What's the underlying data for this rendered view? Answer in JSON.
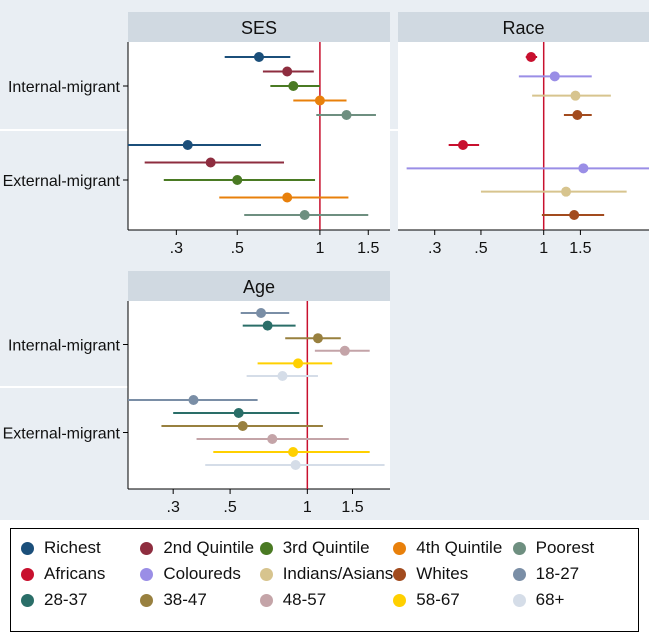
{
  "panel_rows": [
    "Internal-migrant",
    "External-migrant"
  ],
  "chart_data": [
    {
      "type": "coefficient-plot",
      "title": "SES",
      "scale": "log",
      "xticks": [
        0.3,
        0.5,
        1,
        1.5
      ],
      "xtick_labels": [
        ".3",
        ".5",
        "1",
        "1.5"
      ],
      "xlim": [
        0.2,
        1.8
      ],
      "reference_line": 1,
      "rows": [
        "Internal-migrant",
        "External-migrant"
      ],
      "series": [
        {
          "name": "Richest",
          "color": "#1b4f7a",
          "points": [
            {
              "row": "Internal-migrant",
              "est": 0.6,
              "lo": 0.45,
              "hi": 0.78
            },
            {
              "row": "External-migrant",
              "est": 0.33,
              "lo": 0.2,
              "hi": 0.61
            }
          ]
        },
        {
          "name": "2nd Quintile",
          "color": "#8e2d3f",
          "points": [
            {
              "row": "Internal-migrant",
              "est": 0.76,
              "lo": 0.62,
              "hi": 0.95
            },
            {
              "row": "External-migrant",
              "est": 0.4,
              "lo": 0.23,
              "hi": 0.74
            }
          ]
        },
        {
          "name": "3rd Quintile",
          "color": "#4a7a23",
          "points": [
            {
              "row": "Internal-migrant",
              "est": 0.8,
              "lo": 0.66,
              "hi": 1.0
            },
            {
              "row": "External-migrant",
              "est": 0.5,
              "lo": 0.27,
              "hi": 0.96
            }
          ]
        },
        {
          "name": "4th Quintile",
          "color": "#e8800b",
          "points": [
            {
              "row": "Internal-migrant",
              "est": 1.0,
              "lo": 0.8,
              "hi": 1.25
            },
            {
              "row": "External-migrant",
              "est": 0.76,
              "lo": 0.43,
              "hi": 1.27
            }
          ]
        },
        {
          "name": "Poorest",
          "color": "#6e8f80",
          "points": [
            {
              "row": "Internal-migrant",
              "est": 1.25,
              "lo": 0.97,
              "hi": 1.6
            },
            {
              "row": "External-migrant",
              "est": 0.88,
              "lo": 0.53,
              "hi": 1.5
            }
          ]
        }
      ]
    },
    {
      "type": "coefficient-plot",
      "title": "Race",
      "scale": "log",
      "xticks": [
        0.3,
        0.5,
        1,
        1.5
      ],
      "xtick_labels": [
        ".3",
        ".5",
        "1",
        "1.5"
      ],
      "xlim": [
        0.2,
        3.2
      ],
      "reference_line": 1,
      "rows": [
        "Internal-migrant",
        "External-migrant"
      ],
      "series": [
        {
          "name": "Africans",
          "color": "#c8102e",
          "points": [
            {
              "row": "Internal-migrant",
              "est": 0.87,
              "lo": 0.82,
              "hi": 0.93
            },
            {
              "row": "External-migrant",
              "est": 0.41,
              "lo": 0.35,
              "hi": 0.49
            }
          ]
        },
        {
          "name": "Coloureds",
          "color": "#9a8ee6",
          "points": [
            {
              "row": "Internal-migrant",
              "est": 1.13,
              "lo": 0.76,
              "hi": 1.7
            },
            {
              "row": "External-migrant",
              "est": 1.55,
              "lo": 0.22,
              "hi": 3.2
            }
          ]
        },
        {
          "name": "Indians/Asians",
          "color": "#d7c48e",
          "points": [
            {
              "row": "Internal-migrant",
              "est": 1.42,
              "lo": 0.88,
              "hi": 2.1
            },
            {
              "row": "External-migrant",
              "est": 1.28,
              "lo": 0.5,
              "hi": 2.5
            }
          ]
        },
        {
          "name": "Whites",
          "color": "#a24b1e",
          "points": [
            {
              "row": "Internal-migrant",
              "est": 1.45,
              "lo": 1.25,
              "hi": 1.7
            },
            {
              "row": "External-migrant",
              "est": 1.4,
              "lo": 0.98,
              "hi": 1.95
            }
          ]
        }
      ]
    },
    {
      "type": "coefficient-plot",
      "title": "Age",
      "scale": "log",
      "xticks": [
        0.3,
        0.5,
        1,
        1.5
      ],
      "xtick_labels": [
        ".3",
        ".5",
        "1",
        "1.5"
      ],
      "xlim": [
        0.2,
        2.1
      ],
      "reference_line": 1,
      "rows": [
        "Internal-migrant",
        "External-migrant"
      ],
      "series": [
        {
          "name": "18-27",
          "color": "#7a8ea6",
          "points": [
            {
              "row": "Internal-migrant",
              "est": 0.66,
              "lo": 0.55,
              "hi": 0.85
            },
            {
              "row": "External-migrant",
              "est": 0.36,
              "lo": 0.2,
              "hi": 0.64
            }
          ]
        },
        {
          "name": "28-37",
          "color": "#2a6e68",
          "points": [
            {
              "row": "Internal-migrant",
              "est": 0.7,
              "lo": 0.56,
              "hi": 0.9
            },
            {
              "row": "External-migrant",
              "est": 0.54,
              "lo": 0.3,
              "hi": 0.93
            }
          ]
        },
        {
          "name": "38-47",
          "color": "#98803f",
          "points": [
            {
              "row": "Internal-migrant",
              "est": 1.1,
              "lo": 0.82,
              "hi": 1.35
            },
            {
              "row": "External-migrant",
              "est": 0.56,
              "lo": 0.27,
              "hi": 1.15
            }
          ]
        },
        {
          "name": "48-57",
          "color": "#c4a4a8",
          "points": [
            {
              "row": "Internal-migrant",
              "est": 1.4,
              "lo": 1.07,
              "hi": 1.75
            },
            {
              "row": "External-migrant",
              "est": 0.73,
              "lo": 0.37,
              "hi": 1.45
            }
          ]
        },
        {
          "name": "58-67",
          "color": "#ffd000",
          "points": [
            {
              "row": "Internal-migrant",
              "est": 0.92,
              "lo": 0.64,
              "hi": 1.25
            },
            {
              "row": "External-migrant",
              "est": 0.88,
              "lo": 0.43,
              "hi": 1.75
            }
          ]
        },
        {
          "name": "68+",
          "color": "#d5dde8",
          "points": [
            {
              "row": "Internal-migrant",
              "est": 0.8,
              "lo": 0.58,
              "hi": 1.1
            },
            {
              "row": "External-migrant",
              "est": 0.9,
              "lo": 0.4,
              "hi": 2.0
            }
          ]
        }
      ]
    }
  ],
  "legend": {
    "items": [
      {
        "label": "Richest",
        "color": "#1b4f7a"
      },
      {
        "label": "2nd Quintile",
        "color": "#8e2d3f"
      },
      {
        "label": "3rd Quintile",
        "color": "#4a7a23"
      },
      {
        "label": "4th Quintile",
        "color": "#e8800b"
      },
      {
        "label": "Poorest",
        "color": "#6e8f80"
      },
      {
        "label": "Africans",
        "color": "#c8102e"
      },
      {
        "label": "Coloureds",
        "color": "#9a8ee6"
      },
      {
        "label": "Indians/Asians",
        "color": "#d7c48e"
      },
      {
        "label": "Whites",
        "color": "#a24b1e"
      },
      {
        "label": "18-27",
        "color": "#7a8ea6"
      },
      {
        "label": "28-37",
        "color": "#2a6e68"
      },
      {
        "label": "38-47",
        "color": "#98803f"
      },
      {
        "label": "48-57",
        "color": "#c4a4a8"
      },
      {
        "label": "58-67",
        "color": "#ffd000"
      },
      {
        "label": "68+",
        "color": "#d5dde8"
      }
    ]
  }
}
